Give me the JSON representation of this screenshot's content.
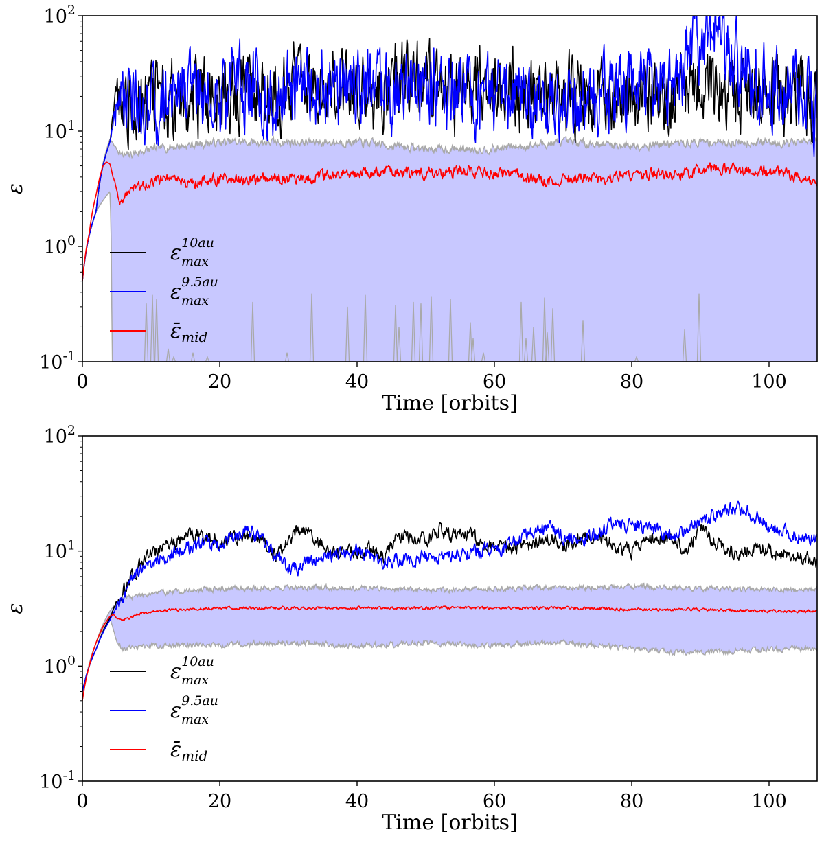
{
  "chart_data": [
    {
      "type": "line",
      "title": "",
      "xlabel": "Time [orbits]",
      "ylabel": "ε",
      "xlim": [
        0,
        107
      ],
      "ylim": [
        0.1,
        100
      ],
      "yscale": "log",
      "xticks": [
        0,
        20,
        40,
        60,
        80,
        100
      ],
      "xtick_labels": [
        "0",
        "20",
        "40",
        "60",
        "80",
        "100"
      ],
      "yticks": [
        0.1,
        1,
        10,
        100
      ],
      "ytick_bases": [
        "10",
        "10",
        "10",
        "10"
      ],
      "ytick_exponents": [
        "-1",
        "0",
        "1",
        "2"
      ],
      "legend_position": "lower-left",
      "series": [
        {
          "name": "max_10au",
          "legend_symbol": "ε",
          "legend_sup": "10au",
          "legend_sub": "max",
          "color": "#000000",
          "x": [
            0,
            2,
            4,
            5,
            6,
            8,
            10,
            12,
            16,
            20,
            24,
            28,
            32,
            36,
            40,
            44,
            48,
            52,
            56,
            60,
            64,
            68,
            72,
            76,
            80,
            84,
            88,
            92,
            96,
            100,
            104,
            107
          ],
          "values": [
            0.5,
            2.0,
            8.0,
            18.0,
            20.0,
            16.0,
            22.0,
            20.0,
            18.0,
            22.0,
            24.0,
            20.0,
            26.0,
            22.0,
            20.0,
            24.0,
            25.0,
            22.0,
            20.0,
            24.0,
            22.0,
            18.0,
            20.0,
            18.0,
            22.0,
            16.0,
            25.0,
            24.0,
            22.0,
            20.0,
            22.0,
            18.0
          ]
        },
        {
          "name": "max_9.5au",
          "legend_symbol": "ε",
          "legend_sup": "9.5au",
          "legend_sub": "max",
          "color": "#0000ff",
          "x": [
            0,
            2,
            4,
            5,
            6,
            8,
            10,
            12,
            16,
            20,
            24,
            28,
            32,
            36,
            40,
            44,
            48,
            52,
            56,
            60,
            64,
            68,
            72,
            76,
            80,
            84,
            88,
            92,
            96,
            100,
            104,
            107
          ],
          "values": [
            0.5,
            2.0,
            8.0,
            16.0,
            15.0,
            18.0,
            16.0,
            20.0,
            22.0,
            20.0,
            24.0,
            22.0,
            20.0,
            22.0,
            24.0,
            20.0,
            22.0,
            24.0,
            20.0,
            18.0,
            22.0,
            20.0,
            18.0,
            20.0,
            22.0,
            22.0,
            40.0,
            70.0,
            30.0,
            24.0,
            20.0,
            16.0
          ]
        },
        {
          "name": "mid_mean",
          "legend_symbol": "ε̄",
          "legend_sup": "",
          "legend_sub": "mid",
          "color": "#ff0000",
          "x": [
            0,
            1,
            2,
            3,
            3.5,
            4,
            4.5,
            5,
            5.5,
            6,
            8,
            10,
            12,
            16,
            20,
            24,
            28,
            32,
            36,
            40,
            44,
            48,
            52,
            56,
            60,
            64,
            68,
            72,
            76,
            80,
            84,
            88,
            92,
            96,
            100,
            104,
            107
          ],
          "values": [
            0.5,
            1.3,
            2.8,
            5.0,
            5.4,
            5.2,
            4.0,
            3.0,
            2.4,
            2.6,
            3.2,
            3.6,
            3.8,
            3.5,
            3.9,
            3.7,
            4.0,
            3.8,
            4.1,
            4.3,
            4.6,
            4.4,
            4.3,
            4.5,
            4.2,
            4.1,
            3.6,
            4.0,
            3.9,
            4.1,
            4.2,
            4.3,
            4.8,
            4.5,
            4.4,
            4.1,
            3.5
          ]
        },
        {
          "name": "band_upper",
          "color": "#a9a9a9",
          "x": [
            0,
            2,
            4,
            5,
            6,
            10,
            20,
            30,
            40,
            50,
            60,
            70,
            80,
            90,
            100,
            107
          ],
          "values": [
            0.5,
            2.0,
            8.5,
            7.0,
            6.0,
            7.0,
            8.0,
            8.0,
            8.0,
            7.0,
            7.0,
            8.0,
            7.5,
            8.0,
            8.0,
            8.0
          ]
        },
        {
          "name": "band_lower",
          "color": "#a9a9a9",
          "x": [
            0,
            2,
            4,
            4.3,
            107
          ],
          "values": [
            0.5,
            2.0,
            3.0,
            0.1,
            0.1
          ]
        }
      ],
      "band_fill_color": "#c8c8ff"
    },
    {
      "type": "line",
      "title": "",
      "xlabel": "Time [orbits]",
      "ylabel": "ε",
      "xlim": [
        0,
        107
      ],
      "ylim": [
        0.1,
        100
      ],
      "yscale": "log",
      "xticks": [
        0,
        20,
        40,
        60,
        80,
        100
      ],
      "xtick_labels": [
        "0",
        "20",
        "40",
        "60",
        "80",
        "100"
      ],
      "yticks": [
        0.1,
        1,
        10,
        100
      ],
      "ytick_bases": [
        "10",
        "10",
        "10",
        "10"
      ],
      "ytick_exponents": [
        "-1",
        "0",
        "1",
        "2"
      ],
      "legend_position": "lower-left",
      "series": [
        {
          "name": "max_10au",
          "legend_symbol": "ε",
          "legend_sup": "10au",
          "legend_sub": "max",
          "color": "#000000",
          "x": [
            0,
            2,
            4,
            6,
            8,
            10,
            12,
            14,
            16,
            18,
            20,
            22,
            24,
            26,
            28,
            30,
            32,
            34,
            36,
            38,
            40,
            42,
            44,
            46,
            48,
            50,
            52,
            54,
            56,
            58,
            60,
            62,
            64,
            66,
            68,
            70,
            72,
            74,
            76,
            78,
            80,
            82,
            84,
            86,
            88,
            90,
            92,
            94,
            96,
            98,
            100,
            102,
            104,
            107
          ],
          "values": [
            0.6,
            1.4,
            2.6,
            4.5,
            7.0,
            9.5,
            11.0,
            12.5,
            14.0,
            13.5,
            11.5,
            13.0,
            14.0,
            12.5,
            9.0,
            12.5,
            16.0,
            13.0,
            9.5,
            9.5,
            10.0,
            10.5,
            8.5,
            14.0,
            13.0,
            12.5,
            15.0,
            13.5,
            14.0,
            12.0,
            10.5,
            10.5,
            11.0,
            12.0,
            13.5,
            11.0,
            12.5,
            13.5,
            12.5,
            11.0,
            10.0,
            13.0,
            12.5,
            13.0,
            9.5,
            16.0,
            12.0,
            10.0,
            9.5,
            11.0,
            10.0,
            9.5,
            9.0,
            8.0
          ]
        },
        {
          "name": "max_9.5au",
          "legend_symbol": "ε",
          "legend_sup": "9.5au",
          "legend_sub": "max",
          "color": "#0000ff",
          "x": [
            0,
            2,
            4,
            6,
            8,
            10,
            12,
            14,
            16,
            18,
            20,
            22,
            24,
            26,
            28,
            30,
            32,
            34,
            36,
            38,
            40,
            42,
            44,
            46,
            48,
            50,
            52,
            54,
            56,
            58,
            60,
            62,
            64,
            66,
            68,
            70,
            72,
            74,
            76,
            78,
            80,
            82,
            84,
            86,
            88,
            90,
            92,
            94,
            96,
            98,
            100,
            102,
            104,
            107
          ],
          "values": [
            0.6,
            1.4,
            2.5,
            4.0,
            6.5,
            8.0,
            9.0,
            10.0,
            11.0,
            12.0,
            11.5,
            13.0,
            15.0,
            13.0,
            9.0,
            7.0,
            7.5,
            8.5,
            9.0,
            9.5,
            10.0,
            9.0,
            8.0,
            8.5,
            8.5,
            9.0,
            9.0,
            9.5,
            9.5,
            10.0,
            10.5,
            11.0,
            13.5,
            15.0,
            16.0,
            13.5,
            12.0,
            13.5,
            15.0,
            18.0,
            16.0,
            16.5,
            14.5,
            13.5,
            15.0,
            18.5,
            20.0,
            23.0,
            24.0,
            20.0,
            16.0,
            15.0,
            14.0,
            12.5
          ]
        },
        {
          "name": "mid_mean",
          "legend_symbol": "ε̄",
          "legend_sup": "",
          "legend_sub": "mid",
          "color": "#ff0000",
          "x": [
            0,
            1,
            2,
            3,
            4,
            4.5,
            5,
            6,
            8,
            10,
            15,
            20,
            30,
            40,
            50,
            60,
            70,
            80,
            90,
            100,
            107
          ],
          "values": [
            0.5,
            1.0,
            1.6,
            2.2,
            2.7,
            2.8,
            2.6,
            2.5,
            2.8,
            3.0,
            3.1,
            3.2,
            3.2,
            3.2,
            3.2,
            3.2,
            3.2,
            3.1,
            3.1,
            3.0,
            3.0
          ]
        },
        {
          "name": "band_upper",
          "color": "#a9a9a9",
          "x": [
            0,
            2,
            4,
            5,
            6,
            10,
            20,
            30,
            40,
            50,
            60,
            70,
            80,
            90,
            100,
            107
          ],
          "values": [
            0.5,
            1.6,
            3.0,
            3.5,
            3.9,
            4.3,
            4.7,
            4.8,
            4.8,
            4.6,
            4.7,
            4.8,
            4.9,
            4.7,
            4.6,
            4.6
          ]
        },
        {
          "name": "band_lower",
          "color": "#a9a9a9",
          "x": [
            0,
            2,
            4,
            5,
            6,
            10,
            20,
            30,
            40,
            50,
            60,
            70,
            80,
            90,
            100,
            107
          ],
          "values": [
            0.5,
            1.6,
            2.6,
            1.6,
            1.4,
            1.5,
            1.5,
            1.6,
            1.5,
            1.6,
            1.5,
            1.6,
            1.4,
            1.3,
            1.4,
            1.4
          ]
        }
      ],
      "band_fill_color": "#c8c8ff"
    }
  ]
}
